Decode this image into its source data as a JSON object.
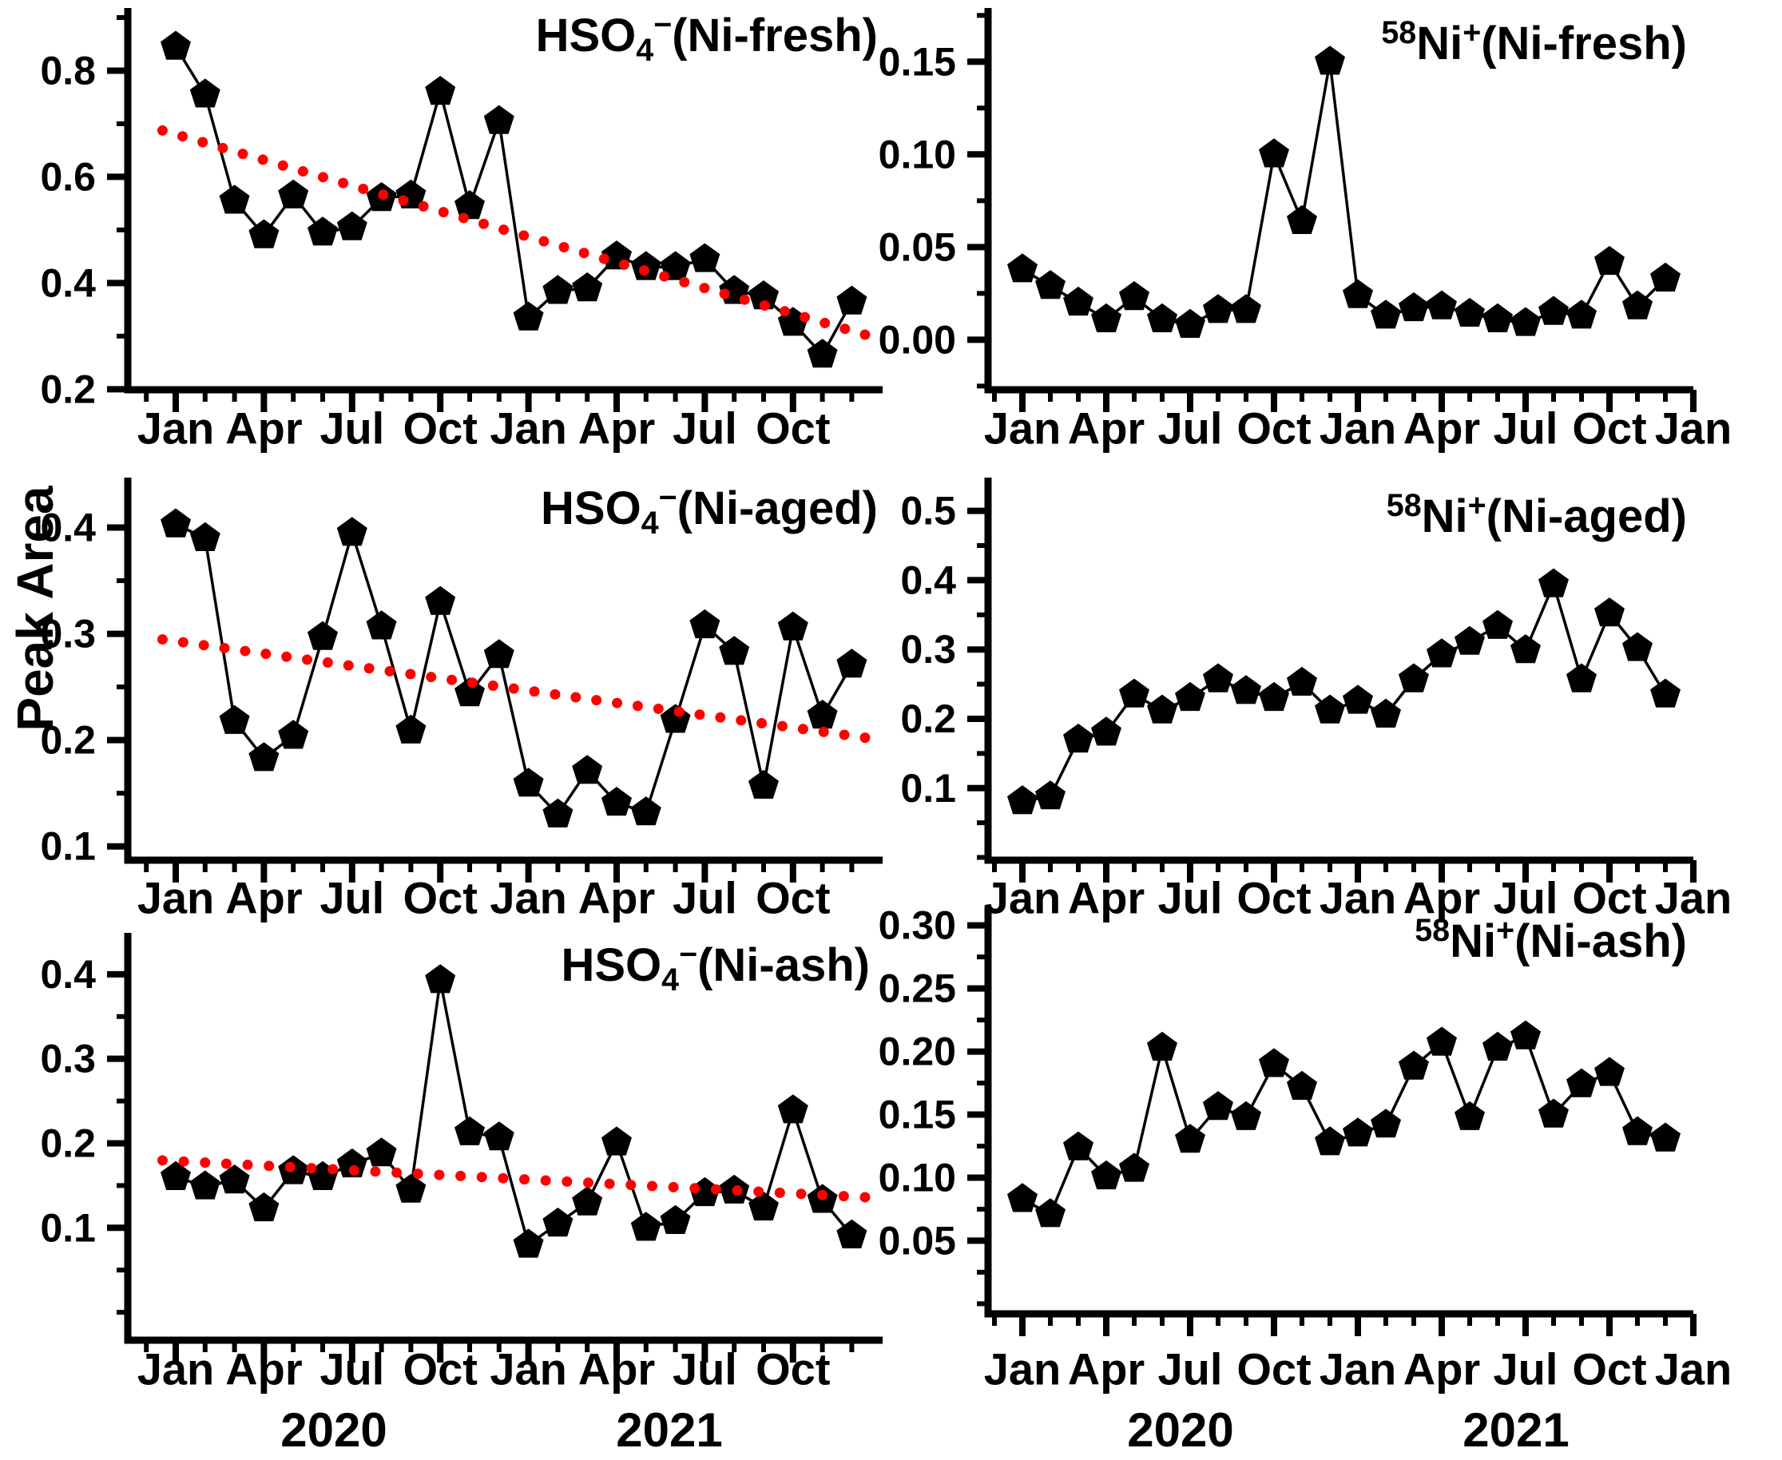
{
  "figure": {
    "ylabel": "Peak Area",
    "background": "#ffffff",
    "axis_color": "#000000",
    "marker_color": "#000000",
    "trend_color": "#ff0000",
    "marker_shape": "pentagon"
  },
  "x_axis": {
    "months_major_left": [
      "Jan",
      "Apr",
      "Jul",
      "Oct",
      "Jan",
      "Apr",
      "Jul",
      "Oct"
    ],
    "months_major_right": [
      "Jan",
      "Apr",
      "Jul",
      "Oct",
      "Jan",
      "Apr",
      "Jul",
      "Oct",
      "Jan"
    ],
    "years_left": [
      "2020",
      "2021"
    ],
    "years_right": [
      "2020",
      "2021"
    ],
    "x_range": [
      "Jan 2020",
      "Dec 2021"
    ],
    "n_months": 24
  },
  "chart_data": [
    {
      "id": "hso4-ni-fresh",
      "type": "line",
      "title_segments": [
        {
          "t": "HSO"
        },
        {
          "t": "4",
          "sub": true
        },
        {
          "t": "−",
          "sup": true
        },
        {
          "t": "(Ni-fresh)"
        }
      ],
      "title_text": "HSO4-(Ni-fresh)",
      "yticks": [
        0.2,
        0.4,
        0.6,
        0.8
      ],
      "ytick_labels": [
        "0.2",
        "0.4",
        "0.6",
        "0.8"
      ],
      "minor_step": 0.1,
      "ylim": [
        0.199,
        0.918
      ],
      "values": [
        0.845,
        0.755,
        0.555,
        0.49,
        0.565,
        0.495,
        0.505,
        0.56,
        0.565,
        0.76,
        0.545,
        0.705,
        0.335,
        0.385,
        0.39,
        0.45,
        0.43,
        0.43,
        0.445,
        0.385,
        0.375,
        0.325,
        0.265,
        0.365
      ],
      "trend": {
        "start": 0.68,
        "end": 0.31
      }
    },
    {
      "id": "ni58-ni-fresh",
      "type": "line",
      "title_segments": [
        {
          "t": "58",
          "sup": true
        },
        {
          "t": "Ni"
        },
        {
          "t": "+",
          "sup": true
        },
        {
          "t": "(Ni-fresh)"
        }
      ],
      "title_text": "58Ni+(Ni-fresh)",
      "yticks": [
        0.0,
        0.05,
        0.1,
        0.15
      ],
      "ytick_labels": [
        "0.00",
        "0.05",
        "0.10",
        "0.15"
      ],
      "minor_step": 0.025,
      "ylim": [
        -0.027,
        0.179
      ],
      "values": [
        0.038,
        0.029,
        0.02,
        0.011,
        0.023,
        0.011,
        0.008,
        0.016,
        0.016,
        0.1,
        0.064,
        0.15,
        0.024,
        0.013,
        0.017,
        0.018,
        0.014,
        0.011,
        0.009,
        0.015,
        0.013,
        0.042,
        0.018,
        0.033
      ],
      "trend": null
    },
    {
      "id": "hso4-ni-aged",
      "type": "line",
      "title_segments": [
        {
          "t": "HSO"
        },
        {
          "t": "4",
          "sub": true
        },
        {
          "t": "−",
          "sup": true
        },
        {
          "t": "(Ni-aged)"
        }
      ],
      "title_text": "HSO4-(Ni-aged)",
      "yticks": [
        0.1,
        0.2,
        0.3,
        0.4
      ],
      "ytick_labels": [
        "0.1",
        "0.2",
        "0.3",
        "0.4"
      ],
      "minor_step": 0.05,
      "ylim": [
        0.087,
        0.447
      ],
      "values": [
        0.403,
        0.39,
        0.218,
        0.183,
        0.204,
        0.297,
        0.395,
        0.307,
        0.209,
        0.33,
        0.244,
        0.28,
        0.159,
        0.13,
        0.171,
        0.141,
        0.132,
        0.219,
        0.308,
        0.283,
        0.157,
        0.306,
        0.223,
        0.271
      ],
      "trend": {
        "start": 0.293,
        "end": 0.204
      }
    },
    {
      "id": "ni58-ni-aged",
      "type": "line",
      "title_segments": [
        {
          "t": "58",
          "sup": true
        },
        {
          "t": "Ni"
        },
        {
          "t": "+",
          "sup": true
        },
        {
          "t": "(Ni-aged)"
        }
      ],
      "title_text": "58Ni+(Ni-aged)",
      "yticks": [
        0.1,
        0.2,
        0.3,
        0.4,
        0.5
      ],
      "ytick_labels": [
        "0.1",
        "0.2",
        "0.3",
        "0.4",
        "0.5"
      ],
      "minor_step": 0.05,
      "ylim": [
        -0.004,
        0.548
      ],
      "values": [
        0.081,
        0.088,
        0.17,
        0.18,
        0.235,
        0.212,
        0.23,
        0.257,
        0.24,
        0.23,
        0.252,
        0.212,
        0.226,
        0.206,
        0.257,
        0.293,
        0.311,
        0.334,
        0.299,
        0.394,
        0.257,
        0.352,
        0.302,
        0.235
      ],
      "trend": null
    },
    {
      "id": "hso4-ni-ash",
      "type": "line",
      "title_segments": [
        {
          "t": "HSO"
        },
        {
          "t": "4",
          "sub": true
        },
        {
          "t": "−",
          "sup": true
        },
        {
          "t": "(Ni-ash)"
        }
      ],
      "title_text": "HSO4-(Ni-ash)",
      "yticks": [
        0.1,
        0.2,
        0.3,
        0.4
      ],
      "ytick_labels": [
        "0.1",
        "0.2",
        "0.3",
        "0.4"
      ],
      "minor_step": 0.05,
      "ylim": [
        -0.033,
        0.449
      ],
      "values": [
        0.16,
        0.149,
        0.156,
        0.123,
        0.167,
        0.16,
        0.175,
        0.188,
        0.145,
        0.393,
        0.213,
        0.207,
        0.08,
        0.105,
        0.13,
        0.201,
        0.1,
        0.108,
        0.141,
        0.144,
        0.124,
        0.239,
        0.133,
        0.091
      ],
      "trend": {
        "start": 0.179,
        "end": 0.137
      }
    },
    {
      "id": "ni58-ni-ash",
      "type": "line",
      "title_segments": [
        {
          "t": "58",
          "sup": true
        },
        {
          "t": "Ni"
        },
        {
          "t": "+",
          "sup": true
        },
        {
          "t": "(Ni-ash)"
        }
      ],
      "title_text": "58Ni+(Ni-ash)",
      "yticks": [
        0.05,
        0.1,
        0.15,
        0.2,
        0.25,
        0.3
      ],
      "ytick_labels": [
        "0.05",
        "0.10",
        "0.15",
        "0.20",
        "0.25",
        "0.30"
      ],
      "minor_step": 0.025,
      "ylim": [
        -0.008,
        0.315
      ],
      "values": [
        0.083,
        0.071,
        0.124,
        0.101,
        0.107,
        0.203,
        0.13,
        0.156,
        0.148,
        0.19,
        0.172,
        0.128,
        0.135,
        0.142,
        0.188,
        0.207,
        0.148,
        0.203,
        0.212,
        0.15,
        0.174,
        0.183,
        0.136,
        0.131
      ],
      "trend": null
    }
  ]
}
